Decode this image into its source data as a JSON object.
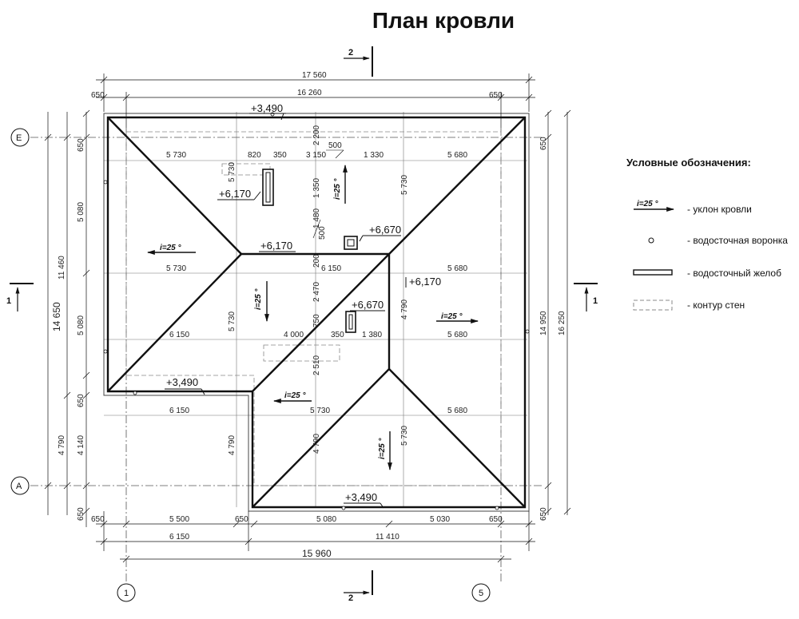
{
  "title": "План кровли",
  "section_marks": {
    "top": "2",
    "bottom": "2",
    "left": "1",
    "right": "1"
  },
  "axes": {
    "e": "Е",
    "a": "А",
    "one": "1",
    "five": "5"
  },
  "levels": {
    "top_eave": "+3,490",
    "left_skylight": "+6,170",
    "chimney": "+6,670",
    "ridge": "+6,170",
    "right_ridge": "+6,170",
    "center_skylight": "+6,670",
    "left_eave": "+3,490",
    "bottom_eave": "+3,490"
  },
  "slopes": {
    "label": "i=25 °"
  },
  "dims_top": {
    "total": "17 560",
    "inner": "16 260",
    "overhang_l": "650",
    "overhang_r": "650"
  },
  "dims_row1": {
    "a": "5 730",
    "b": "820",
    "c": "350",
    "d": "3 150",
    "e": "1 330",
    "f": "5 680"
  },
  "dims_row2": {
    "a": "5 730",
    "b": "6 150",
    "c": "5 680"
  },
  "dims_row3": {
    "a": "6 150",
    "b": "4 000",
    "c": "350",
    "d": "1 380",
    "e": "5 680"
  },
  "dims_row4": {
    "a": "6 150",
    "b": "5 730",
    "c": "5 680"
  },
  "dims_vertical": {
    "v2200": "2 200",
    "v500a": "500",
    "v500b": "500",
    "v1350": "1 350",
    "v1480": "1 480",
    "v200": "200",
    "v2470": "2 470",
    "v750": "750",
    "v2510": "2 510",
    "v5730a": "5 730",
    "v5730b": "5 730",
    "v5730c": "5 730",
    "v4790a": "4 790",
    "v4790b": "4 790",
    "v4790c": "4 790",
    "v5730d": "5 730"
  },
  "dims_left": {
    "total": "14 650",
    "part1": "11 460",
    "part2": "4 790",
    "o1": "650",
    "a": "5 080",
    "b": "5 080",
    "o2": "650",
    "c": "4 140",
    "o3": "650"
  },
  "dims_right": {
    "total": "16 250",
    "inner": "14 950",
    "o1": "650",
    "o2": "650"
  },
  "dims_bottom": {
    "row1": {
      "o1": "650",
      "a": "5 500",
      "b": "650",
      "c": "5 080",
      "d": "5 030",
      "o2": "650"
    },
    "row2": {
      "a": "6 150",
      "b": "11 410"
    },
    "total": "15 960"
  },
  "legend": {
    "title": "Условные обозначения:",
    "slope_symbol": "i=25 °",
    "items": [
      "- уклон кровли",
      "- водосточная воронка",
      "- водосточный желоб",
      "- контур стен"
    ]
  }
}
